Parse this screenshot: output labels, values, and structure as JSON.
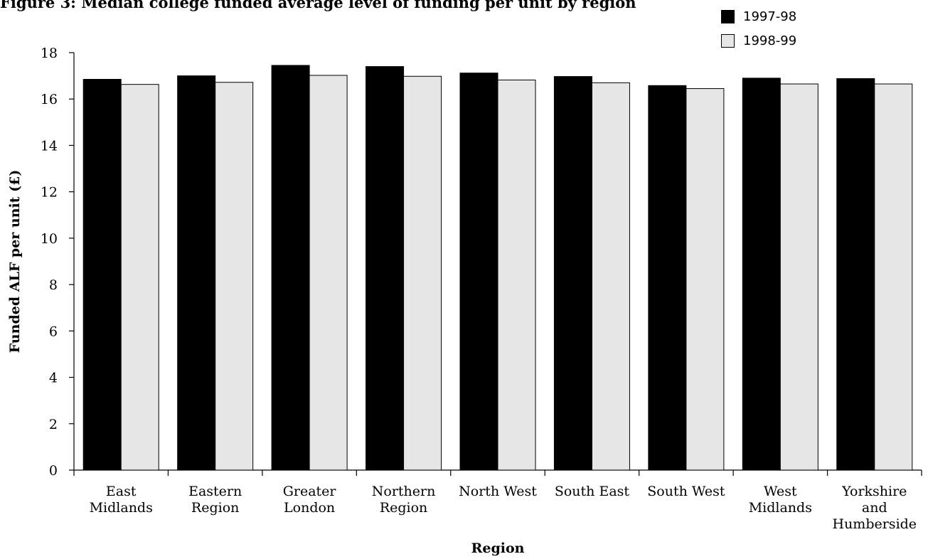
{
  "title": "Figure 3:  Median college funded average level of funding per unit by region",
  "colors": {
    "s1": "#000000",
    "s2": "#e6e6e6"
  },
  "chart_data": {
    "type": "bar",
    "xlabel": "Region",
    "ylabel": "Funded ALF per unit (£)",
    "ylim": [
      0,
      18
    ],
    "yticks": [
      0,
      2,
      4,
      6,
      8,
      10,
      12,
      14,
      16,
      18
    ],
    "grid": false,
    "legend_position": "top-right",
    "categories": [
      [
        "East",
        "Midlands"
      ],
      [
        "Eastern",
        "Region"
      ],
      [
        "Greater",
        "London"
      ],
      [
        "Northern",
        "Region"
      ],
      [
        "North West"
      ],
      [
        "South East"
      ],
      [
        "South West"
      ],
      [
        "West",
        "Midlands"
      ],
      [
        "Yorkshire",
        "and",
        "Humberside"
      ]
    ],
    "series": [
      {
        "name": "1997-98",
        "color": "#000000",
        "values": [
          16.85,
          17.0,
          17.45,
          17.4,
          17.12,
          16.97,
          16.58,
          16.9,
          16.88
        ]
      },
      {
        "name": "1998-99",
        "color": "#e6e6e6",
        "values": [
          16.63,
          16.72,
          17.02,
          16.98,
          16.82,
          16.7,
          16.45,
          16.65,
          16.65
        ]
      }
    ]
  }
}
